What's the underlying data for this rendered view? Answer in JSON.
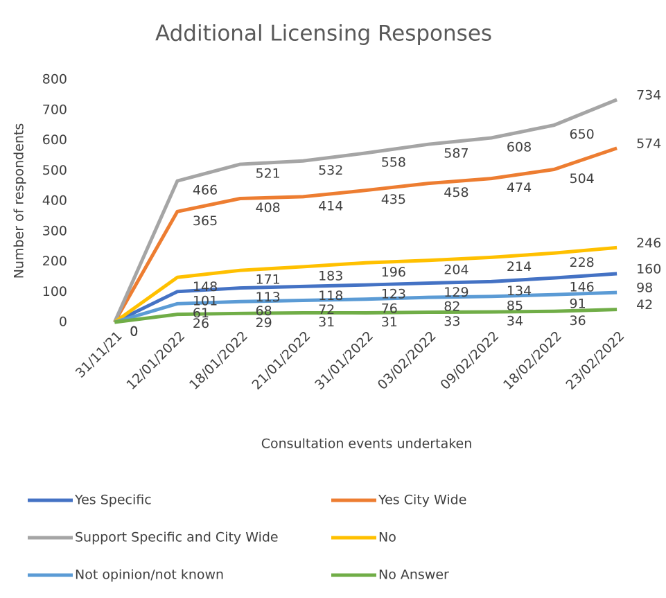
{
  "chart_data": {
    "type": "line",
    "title": "Additional Licensing Responses",
    "x_label": "Consultation events undertaken",
    "y_label": "Number of respondents",
    "categories": [
      "31/11/21",
      "12/01/2022",
      "18/01/2022",
      "21/01/2022",
      "31/01/2022",
      "03/02/2022",
      "09/02/2022",
      "18/02/2022",
      "23/02/2022"
    ],
    "series": [
      {
        "name": "Yes Specific",
        "color": "#4472c4",
        "values": [
          0,
          101,
          113,
          118,
          123,
          129,
          134,
          146,
          160
        ]
      },
      {
        "name": "Yes City Wide",
        "color": "#ed7d31",
        "values": [
          0,
          365,
          408,
          414,
          435,
          458,
          474,
          504,
          574
        ]
      },
      {
        "name": "Support Specific and City Wide",
        "color": "#a5a5a5",
        "values": [
          0,
          466,
          521,
          532,
          558,
          587,
          608,
          650,
          734
        ]
      },
      {
        "name": "No",
        "color": "#ffc000",
        "values": [
          0,
          148,
          171,
          183,
          196,
          204,
          214,
          228,
          246
        ]
      },
      {
        "name": "Not opinion/not known",
        "color": "#5b9bd5",
        "values": [
          0,
          61,
          68,
          72,
          76,
          82,
          85,
          91,
          98
        ]
      },
      {
        "name": "No Answer",
        "color": "#70ad47",
        "values": [
          0,
          26,
          29,
          31,
          31,
          33,
          34,
          36,
          42
        ]
      }
    ],
    "ylim": [
      0,
      800
    ],
    "yticks": [
      0,
      100,
      200,
      300,
      400,
      500,
      600,
      700,
      800
    ],
    "grid": false,
    "legend": "bottom"
  }
}
